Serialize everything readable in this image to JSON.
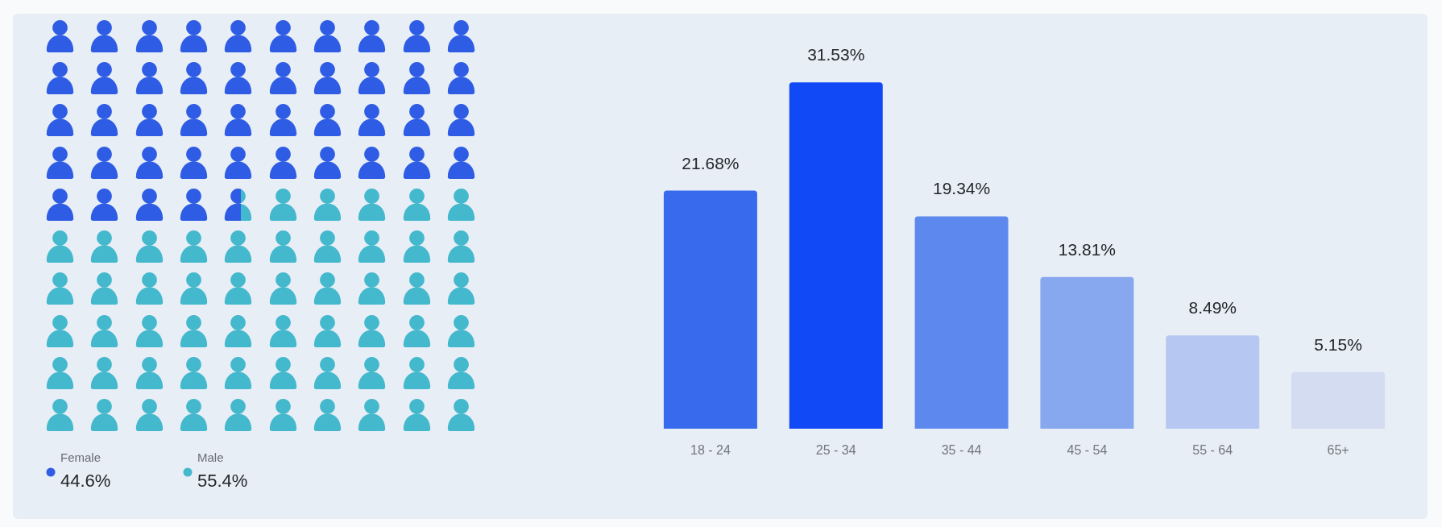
{
  "chart_data": [
    {
      "type": "other",
      "categories": [
        "Female",
        "Male"
      ],
      "values": [
        44.6,
        55.4
      ],
      "value_labels": [
        "44.6%",
        "55.4%"
      ],
      "colors": [
        "#2f5ce4",
        "#44b8cc"
      ]
    },
    {
      "type": "bar",
      "categories": [
        "18 - 24",
        "25 - 34",
        "35 - 44",
        "45 - 54",
        "55 - 64",
        "65+"
      ],
      "values": [
        21.68,
        31.53,
        19.34,
        13.81,
        8.49,
        5.15
      ],
      "value_labels": [
        "21.68%",
        "31.53%",
        "19.34%",
        "13.81%",
        "8.49%",
        "5.15%"
      ],
      "colors": [
        "#386aee",
        "#1049f5",
        "#5d89ee",
        "#87a7ee",
        "#b6c7f2",
        "#d4dcf2"
      ],
      "tick_labels": "x"
    }
  ]
}
